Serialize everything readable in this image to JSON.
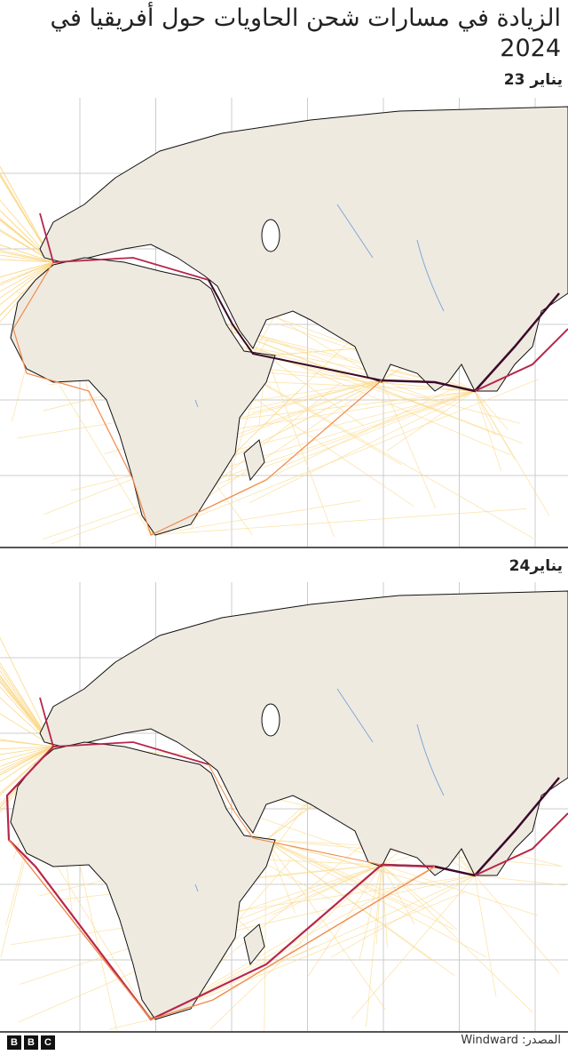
{
  "title": "الزيادة في مسارات شحن الحاويات حول أفريقيا في 2024",
  "maps": [
    {
      "label": "يناير 23"
    },
    {
      "label": "يناير24"
    }
  ],
  "source": "المصدر: Windward",
  "logo": [
    "B",
    "B",
    "C"
  ],
  "colors": {
    "land": "#efeae0",
    "grid": "#cccccc",
    "coast": "#111111",
    "route_light": "#fbd98a",
    "route_mid": "#f08a4b",
    "route_heavy": "#b8264a",
    "route_max": "#3a0a2a",
    "water": "#7fa8d8"
  }
}
